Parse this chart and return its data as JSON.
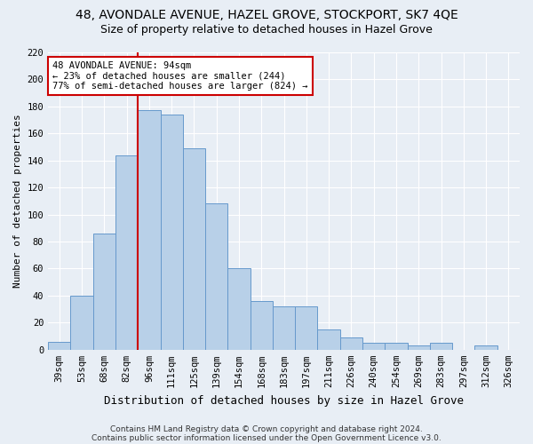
{
  "title1": "48, AVONDALE AVENUE, HAZEL GROVE, STOCKPORT, SK7 4QE",
  "title2": "Size of property relative to detached houses in Hazel Grove",
  "xlabel": "Distribution of detached houses by size in Hazel Grove",
  "ylabel": "Number of detached properties",
  "footnote1": "Contains HM Land Registry data © Crown copyright and database right 2024.",
  "footnote2": "Contains public sector information licensed under the Open Government Licence v3.0.",
  "categories": [
    "39sqm",
    "53sqm",
    "68sqm",
    "82sqm",
    "96sqm",
    "111sqm",
    "125sqm",
    "139sqm",
    "154sqm",
    "168sqm",
    "183sqm",
    "197sqm",
    "211sqm",
    "226sqm",
    "240sqm",
    "254sqm",
    "269sqm",
    "283sqm",
    "297sqm",
    "312sqm",
    "326sqm"
  ],
  "values": [
    6,
    40,
    86,
    144,
    177,
    174,
    149,
    108,
    60,
    36,
    32,
    32,
    15,
    9,
    5,
    5,
    3,
    5,
    0,
    3,
    0
  ],
  "bar_color": "#b8d0e8",
  "bar_edge_color": "#6699cc",
  "property_line_index": 4,
  "annotation_line1": "48 AVONDALE AVENUE: 94sqm",
  "annotation_line2": "← 23% of detached houses are smaller (244)",
  "annotation_line3": "77% of semi-detached houses are larger (824) →",
  "annotation_box_facecolor": "#ffffff",
  "annotation_box_edgecolor": "#cc0000",
  "line_color": "#cc0000",
  "ylim_max": 220,
  "yticks": [
    0,
    20,
    40,
    60,
    80,
    100,
    120,
    140,
    160,
    180,
    200,
    220
  ],
  "background_color": "#e8eef5",
  "grid_color": "#ffffff",
  "title1_fontsize": 10,
  "title2_fontsize": 9,
  "xlabel_fontsize": 9,
  "ylabel_fontsize": 8,
  "tick_fontsize": 7.5,
  "annotation_fontsize": 7.5,
  "footnote_fontsize": 6.5
}
